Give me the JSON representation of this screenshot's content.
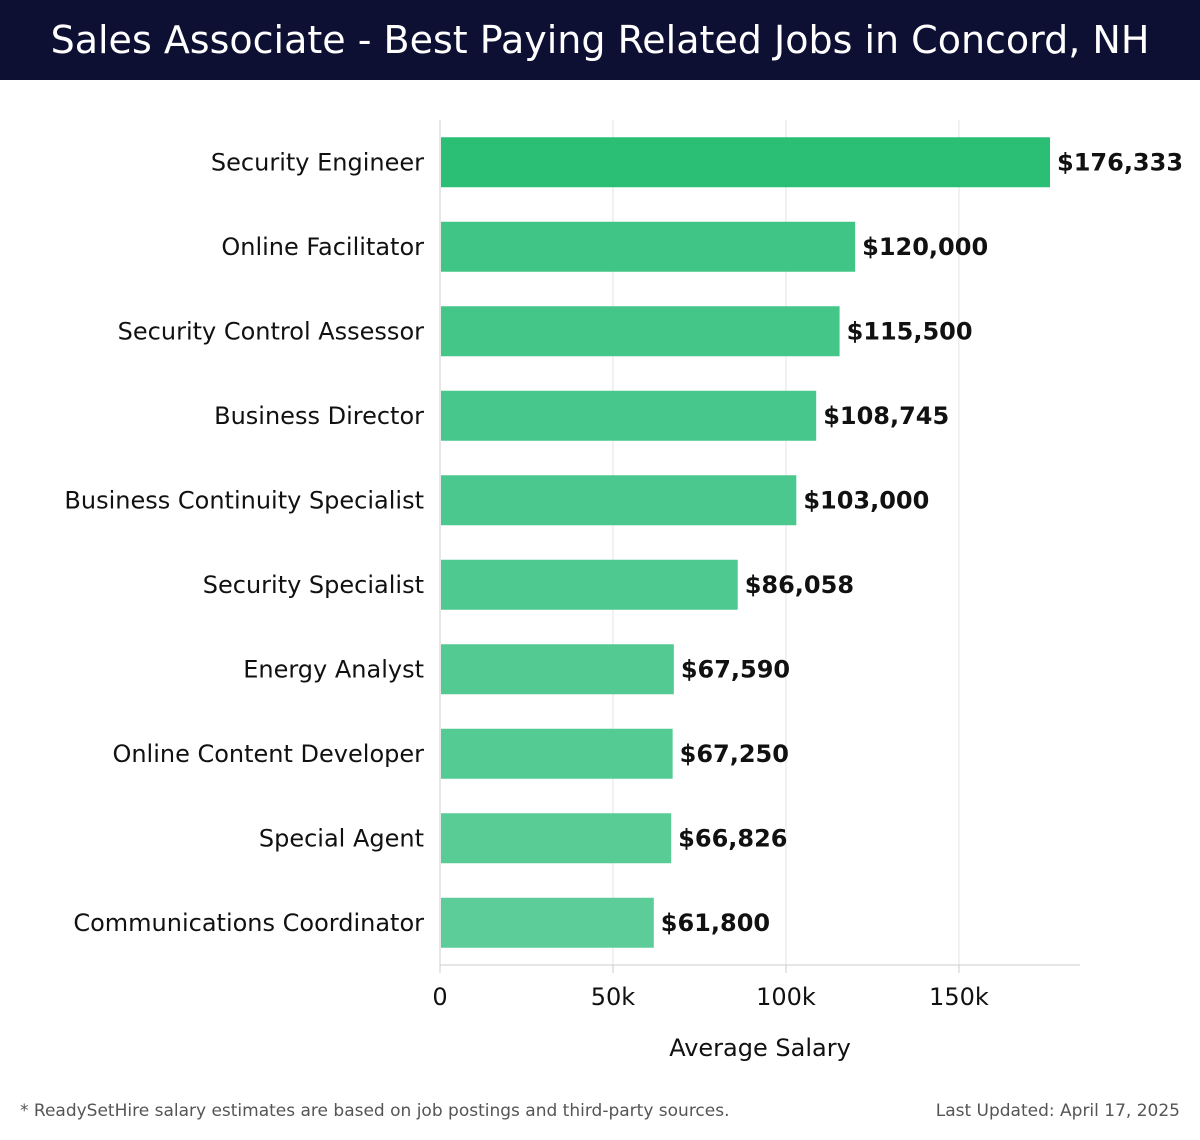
{
  "header": {
    "title": "Sales Associate - Best Paying Related Jobs in Concord, NH"
  },
  "footer": {
    "note": "* ReadySetHire salary estimates are based on job postings and third-party sources.",
    "updated": "Last Updated: April 17, 2025"
  },
  "chart_data": {
    "type": "bar",
    "orientation": "horizontal",
    "title": "Sales Associate - Best Paying Related Jobs in Concord, NH",
    "xlabel": "Average Salary",
    "ylabel": "",
    "xlim": [
      0,
      185000
    ],
    "x_ticks": [
      0,
      50000,
      100000,
      150000
    ],
    "x_tick_labels": [
      "0",
      "50k",
      "100k",
      "150k"
    ],
    "grid": "vertical",
    "categories": [
      "Security Engineer",
      "Online Facilitator",
      "Security Control Assessor",
      "Business Director",
      "Business Continuity Specialist",
      "Security Specialist",
      "Energy Analyst",
      "Online Content Developer",
      "Special Agent",
      "Communications Coordinator"
    ],
    "values": [
      176333,
      120000,
      115500,
      108745,
      103000,
      86058,
      67590,
      67250,
      66826,
      61800
    ],
    "value_labels": [
      "$176,333",
      "$120,000",
      "$115,500",
      "$108,745",
      "$103,000",
      "$86,058",
      "$67,590",
      "$67,250",
      "$66,826",
      "$61,800"
    ],
    "colors": {
      "top_bar": "#2bbf76",
      "bar_start": "#40c586",
      "bar_end": "#5ccd98",
      "grid": "#e3e3e3",
      "axis": "#cccccc",
      "header_bg": "#0d0f33"
    }
  }
}
